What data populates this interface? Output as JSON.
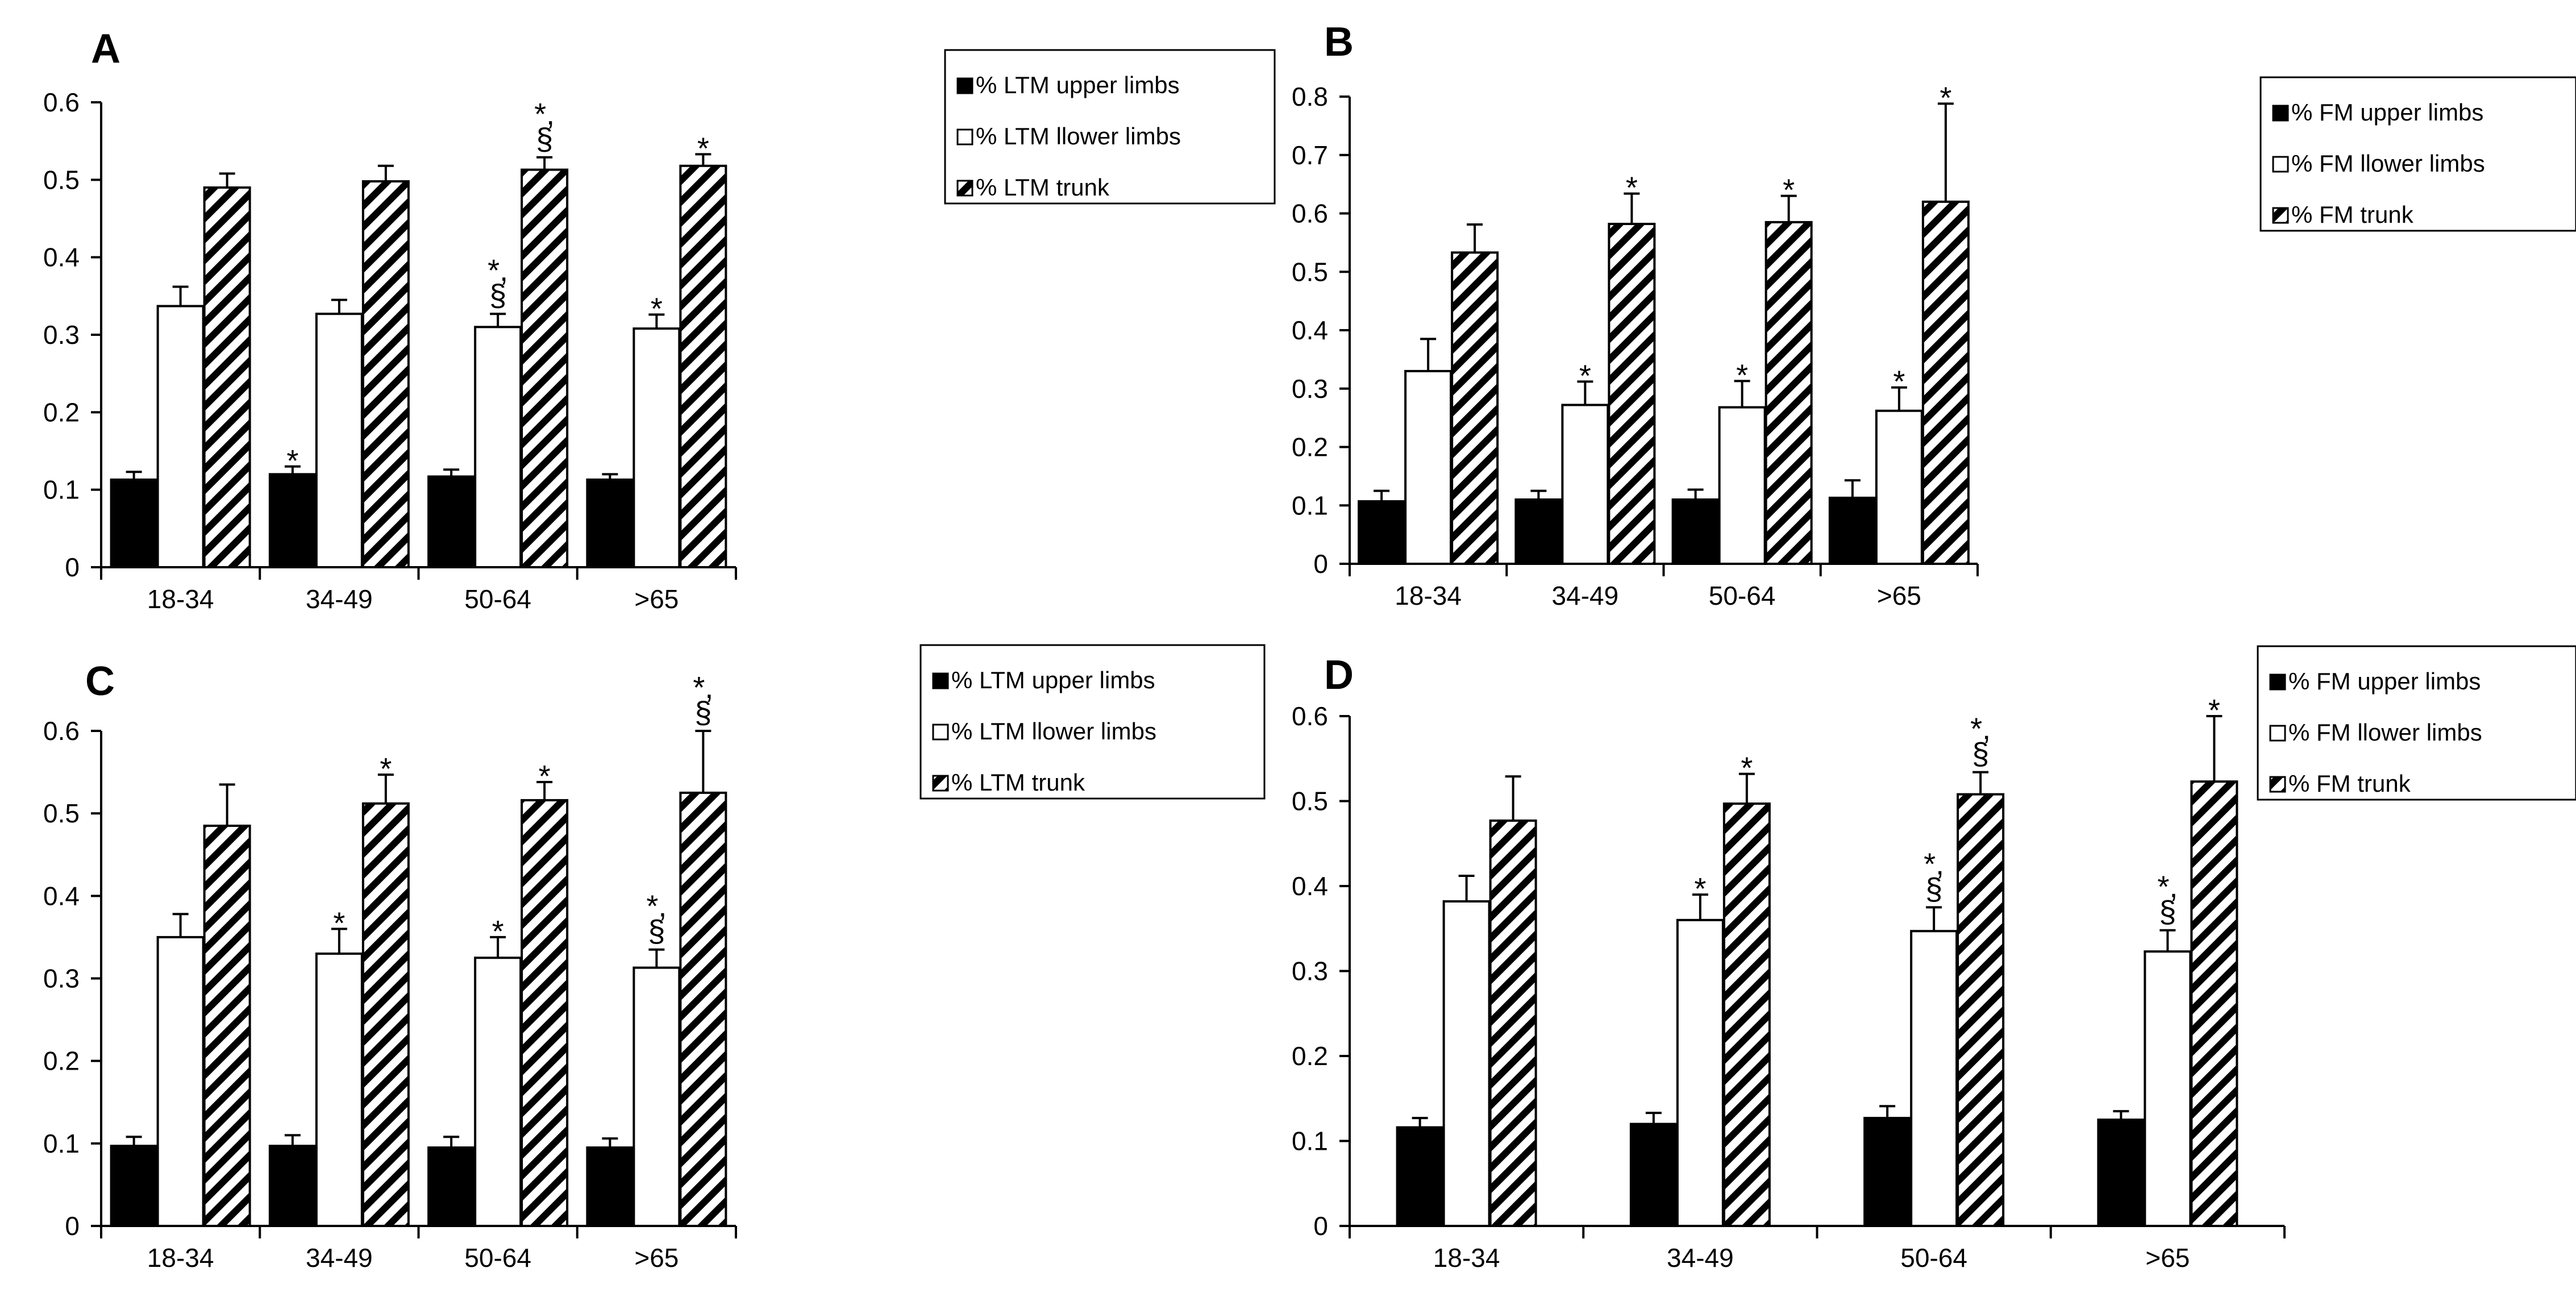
{
  "figure_title": "",
  "chart_data": [
    {
      "panel": "A",
      "type": "bar",
      "categories": [
        "18-34",
        "34-49",
        "50-64",
        ">65"
      ],
      "ylim": [
        0,
        0.6
      ],
      "yticks": [
        "0",
        "0.1",
        "0.2",
        "0.3",
        "0.4",
        "0.5",
        "0.6"
      ],
      "legend_position": "top-right",
      "series": [
        {
          "name": "% LTM upper limbs",
          "fill": "solid",
          "values": [
            0.113,
            0.12,
            0.117,
            0.113
          ],
          "errors": [
            0.01,
            0.01,
            0.009,
            0.007
          ],
          "marks": [
            "",
            "*",
            "",
            ""
          ]
        },
        {
          "name": "% LTM llower limbs",
          "fill": "white",
          "values": [
            0.337,
            0.327,
            0.31,
            0.308
          ],
          "errors": [
            0.025,
            0.018,
            0.017,
            0.018
          ],
          "marks": [
            "",
            "",
            "*,|§",
            "*"
          ]
        },
        {
          "name": "% LTM trunk",
          "fill": "hatch",
          "values": [
            0.49,
            0.498,
            0.513,
            0.518
          ],
          "errors": [
            0.018,
            0.02,
            0.016,
            0.015
          ],
          "marks": [
            "",
            "",
            "*,|§",
            "*"
          ]
        }
      ]
    },
    {
      "panel": "B",
      "type": "bar",
      "categories": [
        "18-34",
        "34-49",
        "50-64",
        ">65"
      ],
      "ylim": [
        0,
        0.8
      ],
      "yticks": [
        "0",
        "0.1",
        "0.2",
        "0.3",
        "0.4",
        "0.5",
        "0.6",
        "0.7",
        "0.8"
      ],
      "legend_position": "top-right",
      "series": [
        {
          "name": "% FM upper limbs",
          "fill": "solid",
          "values": [
            0.107,
            0.11,
            0.11,
            0.113
          ],
          "errors": [
            0.018,
            0.015,
            0.017,
            0.03
          ],
          "marks": [
            "",
            "",
            "",
            ""
          ]
        },
        {
          "name": "% FM llower limbs",
          "fill": "white",
          "values": [
            0.33,
            0.272,
            0.268,
            0.262
          ],
          "errors": [
            0.055,
            0.04,
            0.045,
            0.04
          ],
          "marks": [
            "",
            "*",
            "*",
            "*"
          ]
        },
        {
          "name": "% FM trunk",
          "fill": "hatch",
          "values": [
            0.533,
            0.582,
            0.585,
            0.62
          ],
          "errors": [
            0.048,
            0.052,
            0.045,
            0.168
          ],
          "marks": [
            "",
            "*",
            "*",
            "*"
          ]
        }
      ]
    },
    {
      "panel": "C",
      "type": "bar",
      "categories": [
        "18-34",
        "34-49",
        "50-64",
        ">65"
      ],
      "ylim": [
        0,
        0.6
      ],
      "yticks": [
        "0",
        "0.1",
        "0.2",
        "0.3",
        "0.4",
        "0.5",
        "0.6"
      ],
      "legend_position": "top-right",
      "series": [
        {
          "name": "% LTM upper limbs",
          "fill": "solid",
          "values": [
            0.097,
            0.097,
            0.095,
            0.095
          ],
          "errors": [
            0.011,
            0.013,
            0.013,
            0.011
          ],
          "marks": [
            "",
            "",
            "",
            ""
          ]
        },
        {
          "name": "% LTM llower limbs",
          "fill": "white",
          "values": [
            0.35,
            0.33,
            0.325,
            0.313
          ],
          "errors": [
            0.028,
            0.03,
            0.025,
            0.022
          ],
          "marks": [
            "",
            "*",
            "*",
            "*,|§"
          ]
        },
        {
          "name": "% LTM trunk",
          "fill": "hatch",
          "values": [
            0.485,
            0.512,
            0.516,
            0.525
          ],
          "errors": [
            0.05,
            0.035,
            0.022,
            0.075
          ],
          "marks": [
            "",
            "*",
            "*",
            "*,|§"
          ]
        }
      ]
    },
    {
      "panel": "D",
      "type": "bar",
      "categories": [
        "18-34",
        "34-49",
        "50-64",
        ">65"
      ],
      "ylim": [
        0,
        0.6
      ],
      "yticks": [
        "0",
        "0.1",
        "0.2",
        "0.3",
        "0.4",
        "0.5",
        "0.6"
      ],
      "legend_position": "top-right",
      "series": [
        {
          "name": "% FM upper limbs",
          "fill": "solid",
          "values": [
            0.116,
            0.12,
            0.127,
            0.125
          ],
          "errors": [
            0.011,
            0.013,
            0.014,
            0.01
          ],
          "marks": [
            "",
            "",
            "",
            ""
          ]
        },
        {
          "name": "% FM llower limbs",
          "fill": "white",
          "values": [
            0.382,
            0.36,
            0.347,
            0.323
          ],
          "errors": [
            0.03,
            0.03,
            0.028,
            0.025
          ],
          "marks": [
            "",
            "*",
            "*,|§",
            "*,|§"
          ]
        },
        {
          "name": "% FM trunk",
          "fill": "hatch",
          "values": [
            0.477,
            0.497,
            0.508,
            0.523
          ],
          "errors": [
            0.052,
            0.035,
            0.026,
            0.077
          ],
          "marks": [
            "",
            "*",
            "*,|§",
            "*"
          ]
        }
      ]
    }
  ]
}
